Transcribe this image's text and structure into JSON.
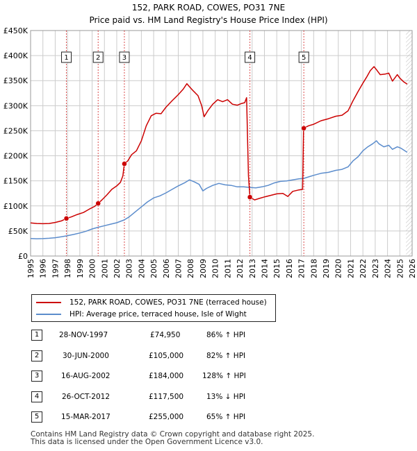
{
  "title_line1": "152, PARK ROAD, COWES, PO31 7NE",
  "title_line2": "Price paid vs. HM Land Registry's House Price Index (HPI)",
  "colors": {
    "property": "#cc0000",
    "hpi": "#5b8ccc",
    "grid": "#cccccc",
    "marker_line": "#cc0000"
  },
  "chart_data": {
    "type": "line",
    "xlim": [
      1995,
      2026
    ],
    "ylim": [
      0,
      450000
    ],
    "x_ticks": [
      1995,
      1996,
      1997,
      1998,
      1999,
      2000,
      2001,
      2002,
      2003,
      2004,
      2005,
      2006,
      2007,
      2008,
      2009,
      2010,
      2011,
      2012,
      2013,
      2014,
      2015,
      2016,
      2017,
      2018,
      2019,
      2020,
      2021,
      2022,
      2023,
      2024,
      2025,
      2026
    ],
    "y_ticks": [
      {
        "value": 0,
        "label": "£0"
      },
      {
        "value": 50000,
        "label": "£50K"
      },
      {
        "value": 100000,
        "label": "£100K"
      },
      {
        "value": 150000,
        "label": "£150K"
      },
      {
        "value": 200000,
        "label": "£200K"
      },
      {
        "value": 250000,
        "label": "£250K"
      },
      {
        "value": 300000,
        "label": "£300K"
      },
      {
        "value": 350000,
        "label": "£350K"
      },
      {
        "value": 400000,
        "label": "£400K"
      },
      {
        "value": 450000,
        "label": "£450K"
      }
    ],
    "series": [
      {
        "name": "152, PARK ROAD, COWES, PO31 7NE (terraced house)",
        "color": "#cc0000",
        "points": [
          [
            1995.0,
            66000
          ],
          [
            1995.5,
            65000
          ],
          [
            1996.0,
            64500
          ],
          [
            1996.5,
            65000
          ],
          [
            1997.0,
            67000
          ],
          [
            1997.5,
            70000
          ],
          [
            1997.9,
            74950
          ],
          [
            1998.3,
            78000
          ],
          [
            1998.8,
            83000
          ],
          [
            1999.3,
            87000
          ],
          [
            1999.8,
            94000
          ],
          [
            2000.2,
            99000
          ],
          [
            2000.5,
            105000
          ],
          [
            2000.8,
            112000
          ],
          [
            2001.2,
            122000
          ],
          [
            2001.6,
            133000
          ],
          [
            2002.0,
            140000
          ],
          [
            2002.3,
            147000
          ],
          [
            2002.5,
            160000
          ],
          [
            2002.62,
            184000
          ],
          [
            2002.9,
            190000
          ],
          [
            2003.2,
            202000
          ],
          [
            2003.6,
            210000
          ],
          [
            2004.0,
            230000
          ],
          [
            2004.4,
            260000
          ],
          [
            2004.8,
            280000
          ],
          [
            2005.2,
            285000
          ],
          [
            2005.6,
            284000
          ],
          [
            2006.0,
            297000
          ],
          [
            2006.5,
            310000
          ],
          [
            2007.0,
            322000
          ],
          [
            2007.4,
            333000
          ],
          [
            2007.7,
            344000
          ],
          [
            2007.9,
            338000
          ],
          [
            2008.2,
            330000
          ],
          [
            2008.6,
            320000
          ],
          [
            2008.9,
            300000
          ],
          [
            2009.1,
            278000
          ],
          [
            2009.4,
            290000
          ],
          [
            2009.8,
            303000
          ],
          [
            2010.2,
            312000
          ],
          [
            2010.6,
            308000
          ],
          [
            2011.0,
            312000
          ],
          [
            2011.4,
            303000
          ],
          [
            2011.8,
            301000
          ],
          [
            2012.1,
            304000
          ],
          [
            2012.4,
            306000
          ],
          [
            2012.55,
            316000
          ],
          [
            2012.7,
            160000
          ],
          [
            2012.82,
            117500
          ],
          [
            2013.2,
            112000
          ],
          [
            2013.6,
            115000
          ],
          [
            2014.0,
            118000
          ],
          [
            2014.5,
            121000
          ],
          [
            2015.0,
            124000
          ],
          [
            2015.5,
            125000
          ],
          [
            2015.9,
            119000
          ],
          [
            2016.3,
            129000
          ],
          [
            2016.8,
            132000
          ],
          [
            2017.1,
            133000
          ],
          [
            2017.18,
            255000
          ],
          [
            2017.6,
            260000
          ],
          [
            2018.0,
            263000
          ],
          [
            2018.6,
            270000
          ],
          [
            2019.2,
            274000
          ],
          [
            2019.8,
            279000
          ],
          [
            2020.3,
            281000
          ],
          [
            2020.8,
            290000
          ],
          [
            2021.2,
            310000
          ],
          [
            2021.6,
            328000
          ],
          [
            2022.0,
            345000
          ],
          [
            2022.3,
            357000
          ],
          [
            2022.6,
            370000
          ],
          [
            2022.9,
            378000
          ],
          [
            2023.1,
            372000
          ],
          [
            2023.4,
            362000
          ],
          [
            2023.8,
            363000
          ],
          [
            2024.1,
            365000
          ],
          [
            2024.4,
            349000
          ],
          [
            2024.8,
            362000
          ],
          [
            2025.0,
            355000
          ],
          [
            2025.3,
            348000
          ],
          [
            2025.6,
            343000
          ]
        ]
      },
      {
        "name": "HPI: Average price, terraced house, Isle of Wight",
        "color": "#5b8ccc",
        "points": [
          [
            1995.0,
            35000
          ],
          [
            1995.5,
            34500
          ],
          [
            1996.0,
            34800
          ],
          [
            1996.5,
            35500
          ],
          [
            1997.0,
            36500
          ],
          [
            1997.5,
            38500
          ],
          [
            1997.9,
            40200
          ],
          [
            1998.5,
            43000
          ],
          [
            1999.0,
            46000
          ],
          [
            1999.5,
            49500
          ],
          [
            2000.0,
            54000
          ],
          [
            2000.5,
            57500
          ],
          [
            2001.0,
            60500
          ],
          [
            2001.5,
            63500
          ],
          [
            2002.0,
            66500
          ],
          [
            2002.6,
            72000
          ],
          [
            2003.0,
            78000
          ],
          [
            2003.5,
            88000
          ],
          [
            2004.0,
            98000
          ],
          [
            2004.5,
            108000
          ],
          [
            2005.0,
            116000
          ],
          [
            2005.5,
            120000
          ],
          [
            2006.0,
            126000
          ],
          [
            2006.5,
            133000
          ],
          [
            2007.0,
            140000
          ],
          [
            2007.5,
            146000
          ],
          [
            2007.9,
            152000
          ],
          [
            2008.3,
            148000
          ],
          [
            2008.7,
            143000
          ],
          [
            2009.0,
            130000
          ],
          [
            2009.3,
            135000
          ],
          [
            2009.8,
            141000
          ],
          [
            2010.3,
            145000
          ],
          [
            2010.8,
            142000
          ],
          [
            2011.3,
            141000
          ],
          [
            2011.8,
            138000
          ],
          [
            2012.3,
            138000
          ],
          [
            2012.8,
            137000
          ],
          [
            2013.3,
            136000
          ],
          [
            2013.8,
            138000
          ],
          [
            2014.3,
            141000
          ],
          [
            2014.8,
            146000
          ],
          [
            2015.3,
            149000
          ],
          [
            2015.8,
            150000
          ],
          [
            2016.3,
            152000
          ],
          [
            2016.8,
            154000
          ],
          [
            2017.2,
            155000
          ],
          [
            2017.6,
            158000
          ],
          [
            2018.0,
            161000
          ],
          [
            2018.6,
            165000
          ],
          [
            2019.2,
            167000
          ],
          [
            2019.8,
            171000
          ],
          [
            2020.3,
            173000
          ],
          [
            2020.8,
            178000
          ],
          [
            2021.2,
            190000
          ],
          [
            2021.6,
            198000
          ],
          [
            2022.0,
            210000
          ],
          [
            2022.4,
            218000
          ],
          [
            2022.8,
            224000
          ],
          [
            2023.1,
            230000
          ],
          [
            2023.3,
            224000
          ],
          [
            2023.7,
            218000
          ],
          [
            2024.1,
            221000
          ],
          [
            2024.4,
            213000
          ],
          [
            2024.8,
            218000
          ],
          [
            2025.1,
            215000
          ],
          [
            2025.6,
            207000
          ]
        ]
      }
    ],
    "sales": [
      {
        "num": "1",
        "date": "28-NOV-1997",
        "year": 1997.91,
        "price_value": 74950,
        "price": "£74,950",
        "hpi": "86% ↑ HPI"
      },
      {
        "num": "2",
        "date": "30-JUN-2000",
        "year": 2000.49,
        "price_value": 105000,
        "price": "£105,000",
        "hpi": "82% ↑ HPI"
      },
      {
        "num": "3",
        "date": "16-AUG-2002",
        "year": 2002.62,
        "price_value": 184000,
        "price": "£184,000",
        "hpi": "128% ↑ HPI"
      },
      {
        "num": "4",
        "date": "26-OCT-2012",
        "year": 2012.82,
        "price_value": 117500,
        "price": "£117,500",
        "hpi": "13% ↓ HPI"
      },
      {
        "num": "5",
        "date": "15-MAR-2017",
        "year": 2017.2,
        "price_value": 255000,
        "price": "£255,000",
        "hpi": "65% ↑ HPI"
      }
    ],
    "hatch_from_year": 2025.5
  },
  "legend": {
    "property_label": "152, PARK ROAD, COWES, PO31 7NE (terraced house)",
    "hpi_label": "HPI: Average price, terraced house, Isle of Wight"
  },
  "footer_line1": "Contains HM Land Registry data © Crown copyright and database right 2025.",
  "footer_line2": "This data is licensed under the Open Government Licence v3.0."
}
